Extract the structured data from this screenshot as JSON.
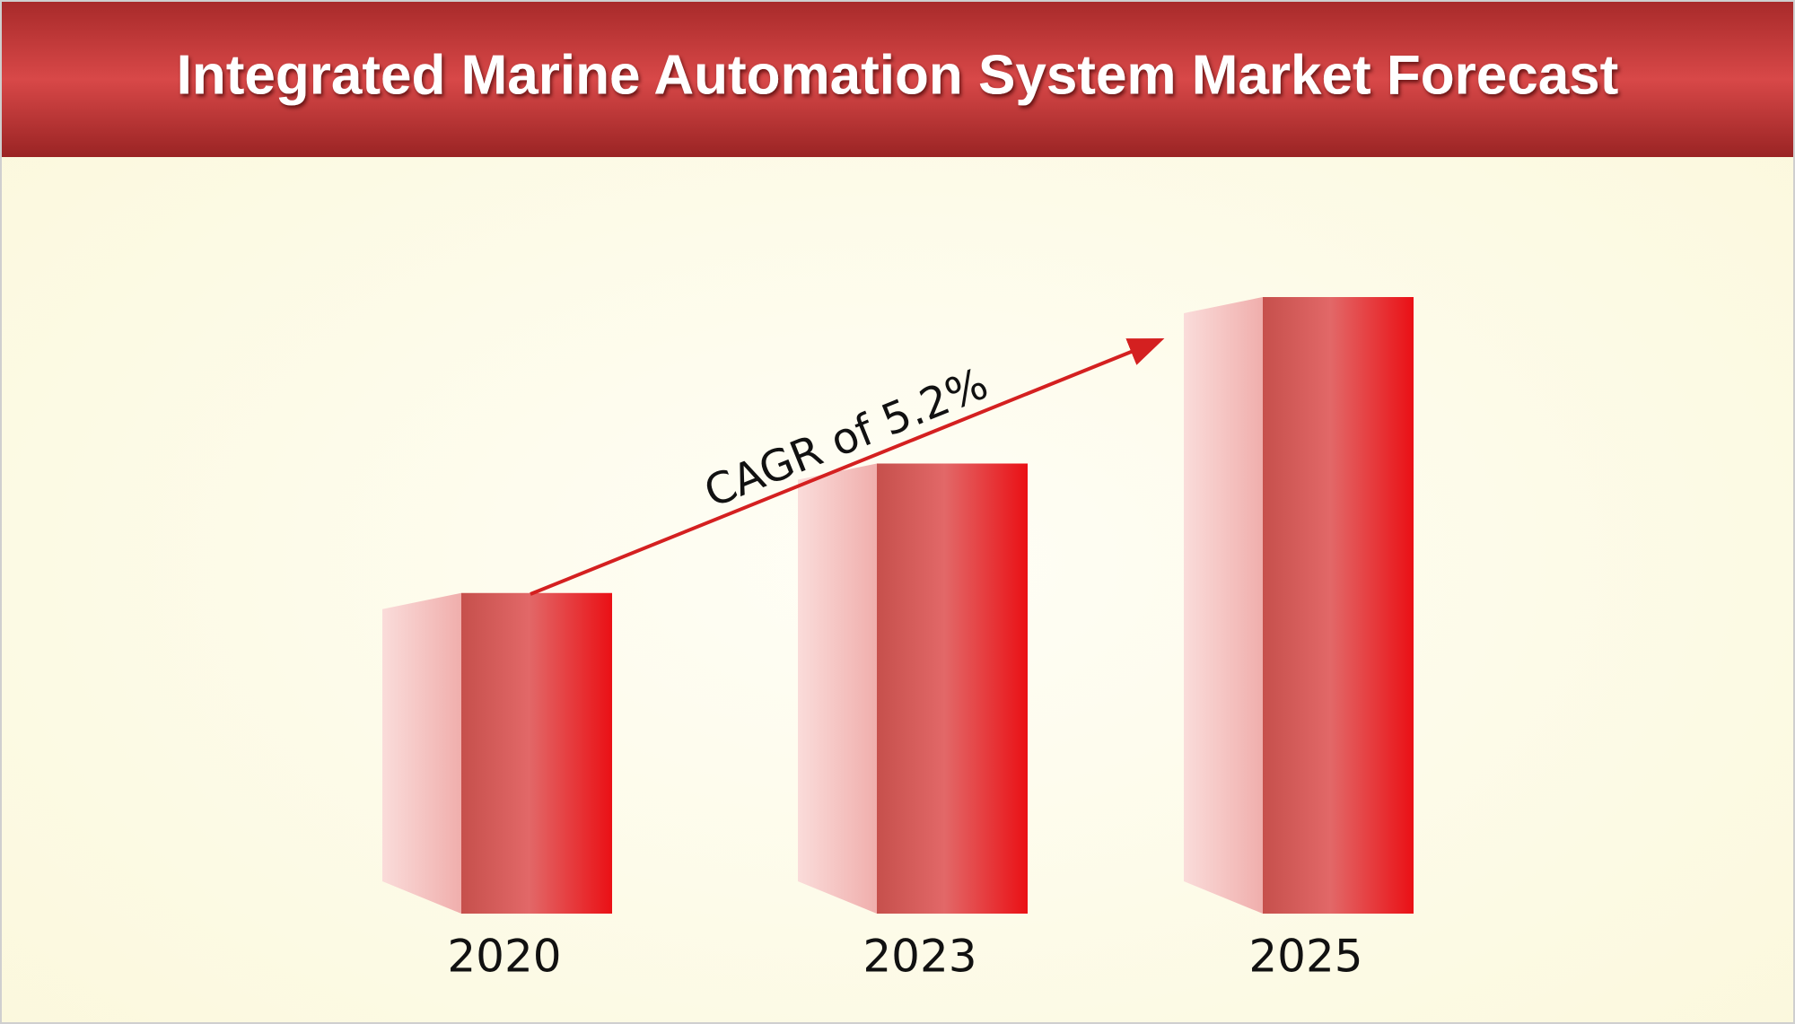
{
  "chart_data": {
    "type": "bar",
    "title": "Integrated Marine Automation System Market Forecast",
    "categories": [
      "2020",
      "2023",
      "2025"
    ],
    "values": [
      52,
      73,
      100
    ],
    "annotation": "CAGR of 5.2%"
  }
}
